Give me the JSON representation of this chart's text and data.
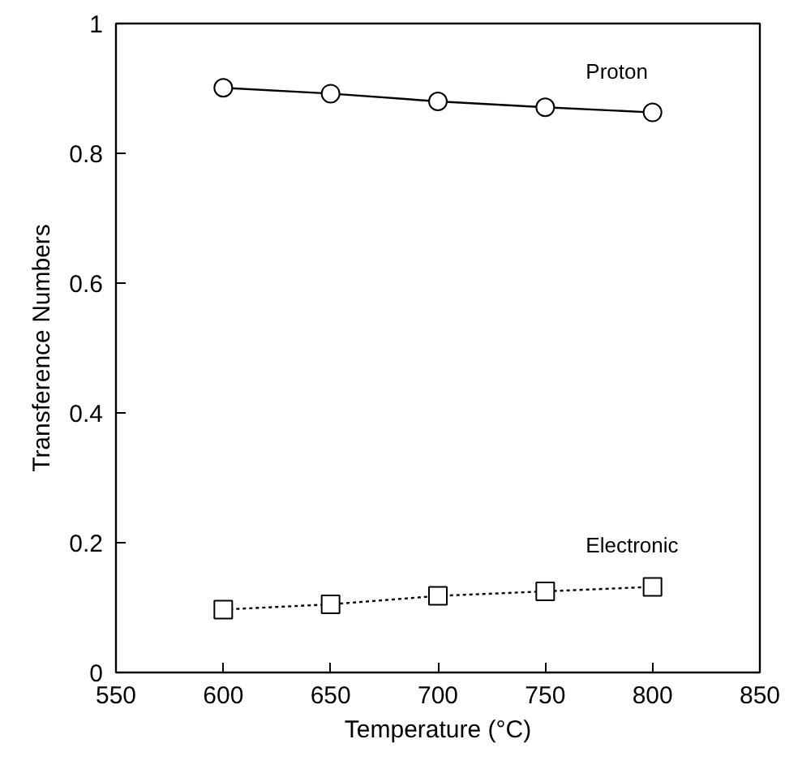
{
  "chart_data": {
    "type": "line",
    "xlabel": "Temperature (°C)",
    "ylabel": "Transference Numbers",
    "x": [
      600,
      650,
      700,
      750,
      800
    ],
    "series": [
      {
        "name": "Proton",
        "color": "#000000",
        "marker": "circle",
        "line_style": "solid",
        "values": [
          0.901,
          0.892,
          0.88,
          0.871,
          0.863
        ]
      },
      {
        "name": "Electronic",
        "color": "#000000",
        "marker": "square",
        "line_style": "dotted",
        "values": [
          0.097,
          0.105,
          0.118,
          0.125,
          0.132
        ]
      }
    ],
    "xlim": [
      550,
      850
    ],
    "xticks": [
      550,
      600,
      650,
      700,
      750,
      800,
      850
    ],
    "ylim": [
      0,
      1
    ],
    "yticks": [
      0,
      0.2,
      0.4,
      0.6,
      0.8,
      1
    ],
    "grid": false
  }
}
